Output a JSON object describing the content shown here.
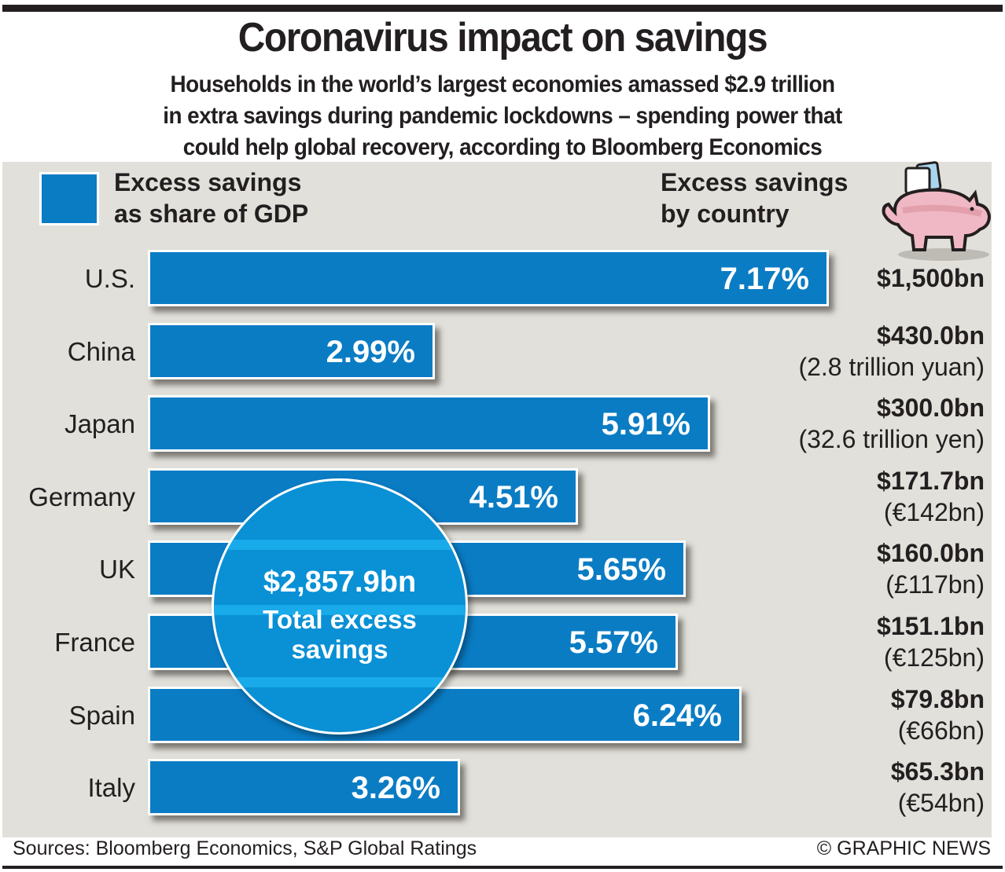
{
  "header": {
    "title": "Coronavirus impact on savings",
    "subtitle_lines": [
      "Households in the world’s largest economies amassed $2.9 trillion",
      "in extra savings during pandemic lockdowns – spending power that",
      "could help global recovery, according to Bloomberg Economics"
    ]
  },
  "legend": {
    "line1": "Excess savings",
    "line2": "as share of GDP",
    "swatch_color": "#0a7cc4"
  },
  "right_header": {
    "line1": "Excess savings",
    "line2": "by country",
    "icon": "piggy-bank-icon"
  },
  "total": {
    "value": "$2,857.9bn",
    "line1": "Total excess",
    "line2": "savings"
  },
  "footer": {
    "sources": "Sources: Bloomberg Economics, S&P Global Ratings",
    "credit": "© GRAPHIC NEWS"
  },
  "chart_data": {
    "type": "bar",
    "orientation": "horizontal",
    "title": "Excess savings as share of GDP",
    "categories": [
      "U.S.",
      "China",
      "Japan",
      "Germany",
      "UK",
      "France",
      "Spain",
      "Italy"
    ],
    "values": [
      7.17,
      2.99,
      5.91,
      4.51,
      5.65,
      5.57,
      6.24,
      3.26
    ],
    "value_labels": [
      "7.17%",
      "2.99%",
      "5.91%",
      "4.51%",
      "5.65%",
      "5.57%",
      "6.24%",
      "3.26%"
    ],
    "unit": "% of GDP",
    "xlim": [
      0,
      8
    ],
    "grid": false,
    "bar_color": "#0a7cc4",
    "secondary_series": {
      "name": "Excess savings by country",
      "values_usd_bn": [
        1500,
        430.0,
        300.0,
        171.7,
        160.0,
        151.1,
        79.8,
        65.3
      ],
      "labels": [
        "$1,500bn",
        "$430.0bn",
        "$300.0bn",
        "$171.7bn",
        "$160.0bn",
        "$151.1bn",
        "$79.8bn",
        "$65.3bn"
      ],
      "local_currency": [
        "",
        "(2.8 trillion yuan)",
        "(32.6 trillion yen)",
        "(€142bn)",
        "(£117bn)",
        "(€125bn)",
        "(€66bn)",
        "(€54bn)"
      ]
    },
    "total_label": "$2,857.9bn Total excess savings"
  }
}
